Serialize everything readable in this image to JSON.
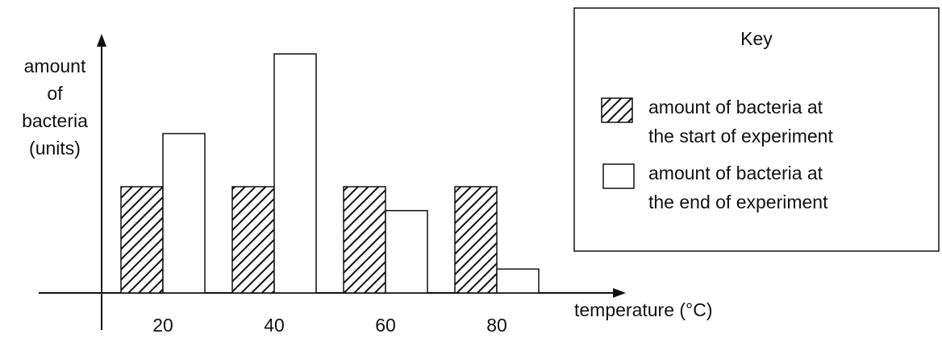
{
  "chart_data": {
    "type": "bar",
    "ylabel": [
      "amount",
      "of",
      "bacteria",
      "(units)"
    ],
    "xlabel": "temperature (°C)",
    "categories": [
      "20",
      "40",
      "60",
      "80"
    ],
    "ylim": [
      0,
      10
    ],
    "series": [
      {
        "name": "amount of bacteria at the start of experiment",
        "pattern": "hatched",
        "values": [
          4,
          4,
          4,
          4
        ]
      },
      {
        "name": "amount of bacteria at the end of experiment",
        "pattern": "plain",
        "values": [
          6,
          9,
          3.1,
          0.9
        ]
      }
    ],
    "legend": {
      "title": "Key",
      "placement": "top-right",
      "entries": [
        [
          "amount of bacteria at",
          "the start of experiment"
        ],
        [
          "amount of bacteria at",
          "the end of experiment"
        ]
      ]
    },
    "grid": false
  }
}
